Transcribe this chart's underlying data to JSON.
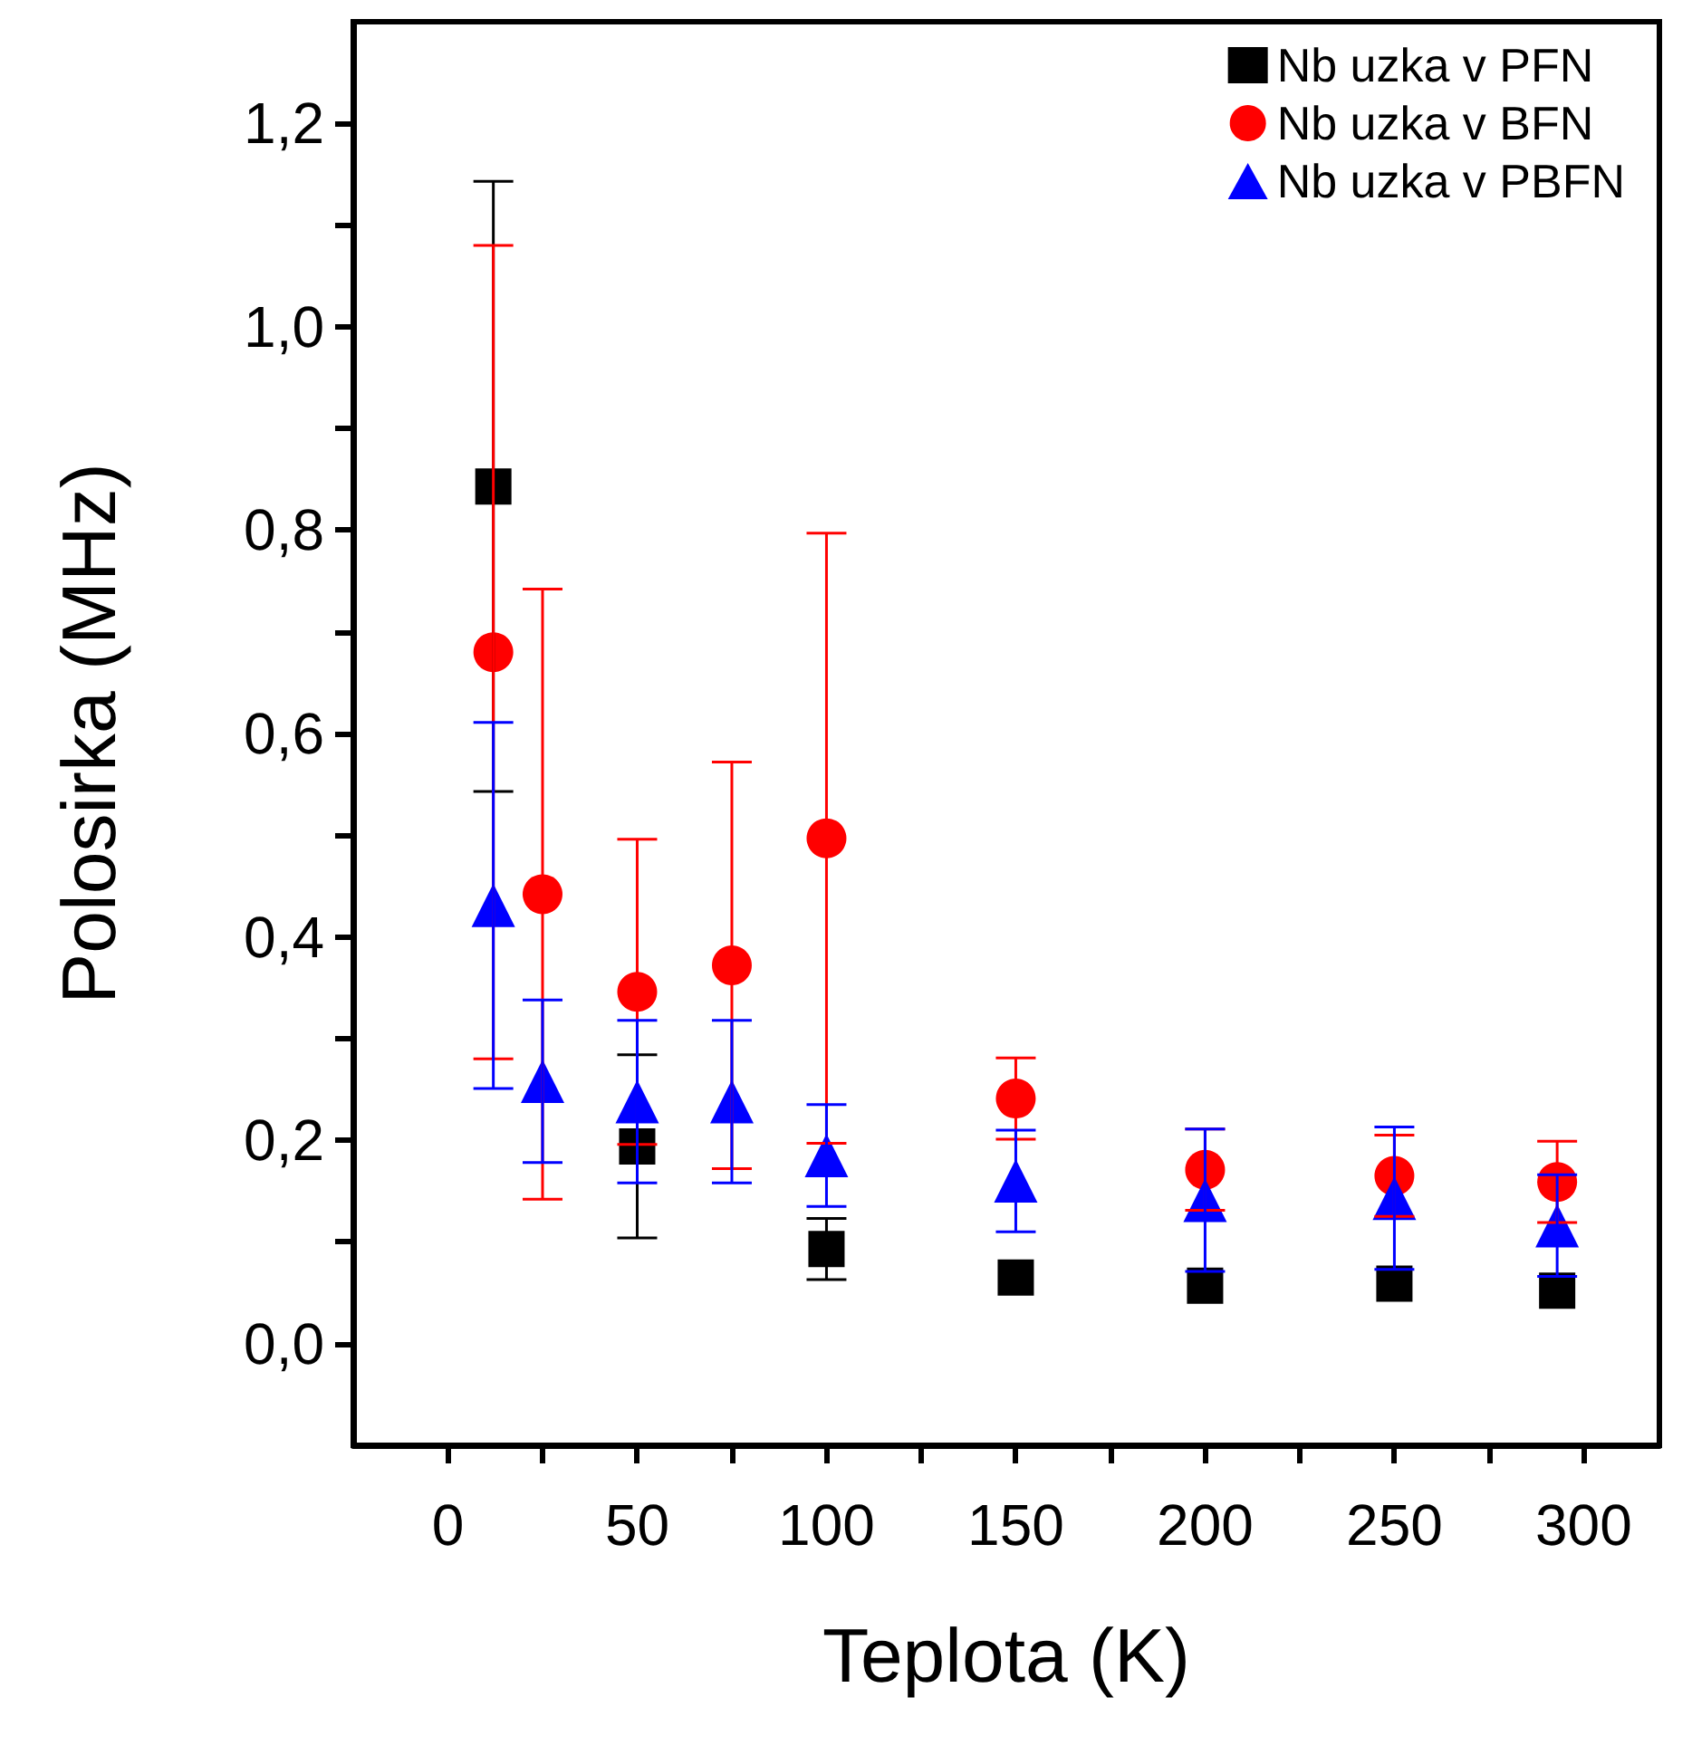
{
  "chart_data": {
    "type": "scatter",
    "xlabel": "Teplota (K)",
    "ylabel": "Polosirka (MHz)",
    "xlim": [
      -25,
      320
    ],
    "xticks": [
      0,
      {
        "value": 25,
        "label": null
      },
      50,
      {
        "value": 75,
        "label": null
      },
      100,
      {
        "value": 125,
        "label": null
      },
      150,
      {
        "value": 175,
        "label": null
      },
      200,
      {
        "value": 225,
        "label": null
      },
      250,
      {
        "value": 275,
        "label": null
      },
      300
    ],
    "ylim": [
      -0.1,
      1.3
    ],
    "yticks": [
      {
        "value": 0,
        "label": "0,0"
      },
      {
        "value": 0.1,
        "label": null
      },
      {
        "value": 0.2,
        "label": "0,2"
      },
      {
        "value": 0.3,
        "label": null
      },
      {
        "value": 0.4,
        "label": "0,4"
      },
      {
        "value": 0.5,
        "label": null
      },
      {
        "value": 0.6,
        "label": "0,6"
      },
      {
        "value": 0.7,
        "label": null
      },
      {
        "value": 0.8,
        "label": "0,8"
      },
      {
        "value": 0.9,
        "label": null
      },
      {
        "value": 1.0,
        "label": "1,0"
      },
      {
        "value": 1.1,
        "label": null
      },
      {
        "value": 1.2,
        "label": "1,2"
      }
    ],
    "grid": false,
    "legend": "top right",
    "x": [
      12,
      50,
      100,
      150,
      200,
      250,
      293
    ],
    "series": [
      {
        "name": "Nb uzka v PFN",
        "color": "#000000",
        "marker": "square",
        "values": [
          0.843,
          0.194,
          0.093,
          0.065,
          0.057,
          0.059,
          0.052
        ],
        "errors": [
          0.3,
          0.09,
          0.03,
          null,
          null,
          null,
          null
        ]
      },
      {
        "name": "Nb uzka v BFN",
        "color": "#ff0000",
        "marker": "circle",
        "x": [
          12,
          25,
          50,
          75,
          100,
          150,
          200,
          250,
          293
        ],
        "values": [
          0.68,
          0.442,
          0.346,
          0.372,
          0.497,
          0.241,
          0.171,
          0.165,
          0.159
        ],
        "errors": [
          0.4,
          0.3,
          0.15,
          0.2,
          0.3,
          0.04,
          0.04,
          0.04,
          0.04
        ]
      },
      {
        "name": "Nb uzka v PBFN",
        "color": "#0000ff",
        "marker": "triangle",
        "x": [
          12,
          25,
          50,
          75,
          100,
          150,
          200,
          250,
          293
        ],
        "values": [
          0.431,
          0.258,
          0.238,
          0.238,
          0.185,
          0.16,
          0.141,
          0.143,
          0.116
        ],
        "errors": [
          0.18,
          0.08,
          0.08,
          0.08,
          0.05,
          0.05,
          0.07,
          0.07,
          0.05
        ]
      }
    ]
  }
}
